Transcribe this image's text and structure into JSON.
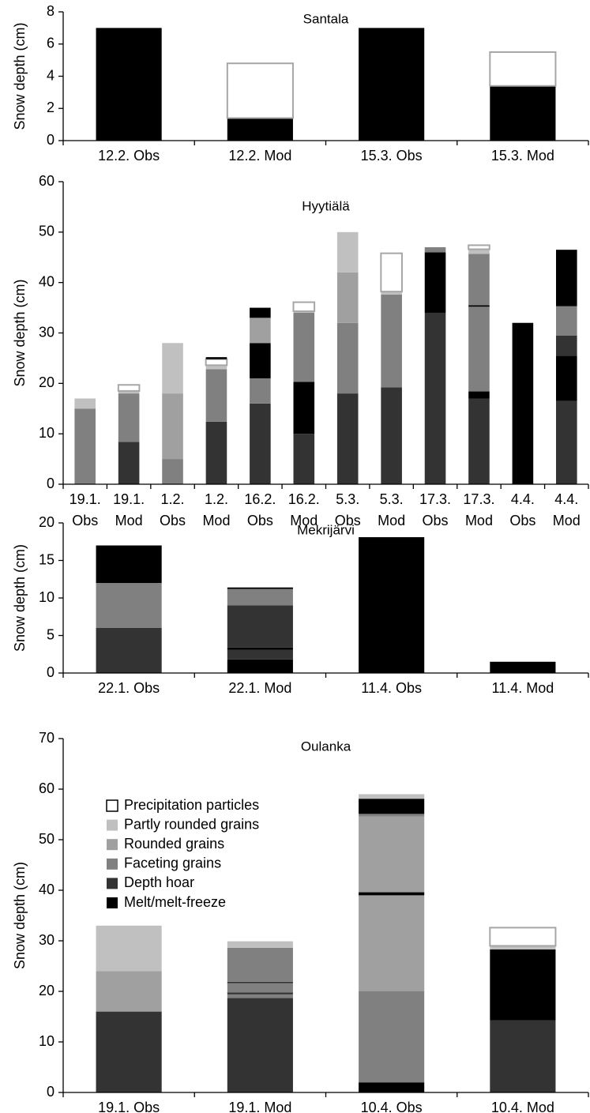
{
  "legend": {
    "position": "upper left",
    "series": [
      {
        "name": "Precipitation particles",
        "color": "#ffffff",
        "edgecolor": "#a6a6a6"
      },
      {
        "name": "Partly rounded grains",
        "color": "#c0c0c0"
      },
      {
        "name": "Rounded grains",
        "color": "#a0a0a0"
      },
      {
        "name": "Faceting grains",
        "color": "#808080"
      },
      {
        "name": "Depth hoar",
        "color": "#333333"
      },
      {
        "name": "Melt/melt-freeze",
        "color": "#000000"
      }
    ]
  },
  "chart_data": [
    {
      "type": "stacked-bar",
      "title": "Santala",
      "y_label": "Snow depth (cm)",
      "categories": [
        "12.2. Obs",
        "12.2. Mod",
        "15.3. Obs",
        "15.3. Mod"
      ],
      "ylim": [
        0,
        8
      ],
      "yticks": [
        0,
        2,
        4,
        6,
        8
      ],
      "stacks": [
        [
          {
            "series": 5,
            "value": 7
          }
        ],
        [
          {
            "series": 5,
            "value": 1.4
          },
          {
            "series": 0,
            "value": 3.4
          }
        ],
        [
          {
            "series": 5,
            "value": 7
          }
        ],
        [
          {
            "series": 5,
            "value": 3.4
          },
          {
            "series": 0,
            "value": 2.1
          }
        ]
      ]
    },
    {
      "type": "stacked-bar",
      "title": "Hyytiälä",
      "y_label": "Snow depth (cm)",
      "categories": [
        [
          "19.1.",
          "Obs"
        ],
        [
          "19.1.",
          "Mod"
        ],
        [
          "1.2.",
          "Obs"
        ],
        [
          "1.2.",
          "Mod"
        ],
        [
          "16.2.",
          "Obs"
        ],
        [
          "16.2.",
          "Mod"
        ],
        [
          "5.3.",
          "Obs"
        ],
        [
          "5.3.",
          "Mod"
        ],
        [
          "17.3.",
          "Obs"
        ],
        [
          "17.3.",
          "Mod"
        ],
        [
          "4.4.",
          "Obs"
        ],
        [
          "4.4.",
          "Mod"
        ]
      ],
      "ylim": [
        0,
        60
      ],
      "yticks": [
        0,
        10,
        20,
        30,
        40,
        50,
        60
      ],
      "stacks": [
        [
          {
            "series": 3,
            "value": 15
          },
          {
            "series": 1,
            "value": 2
          }
        ],
        [
          {
            "series": 4,
            "value": 8.4
          },
          {
            "series": 3,
            "value": 9.6
          },
          {
            "series": 1,
            "value": 0.5
          },
          {
            "series": 0,
            "value": 1.2
          }
        ],
        [
          {
            "series": 3,
            "value": 5
          },
          {
            "series": 2,
            "value": 13
          },
          {
            "series": 1,
            "value": 10
          }
        ],
        [
          {
            "series": 4,
            "value": 12.4
          },
          {
            "series": 3,
            "value": 10.4
          },
          {
            "series": 1,
            "value": 0.8
          },
          {
            "series": 0,
            "value": 1.2
          },
          {
            "series": 5,
            "value": 0.4
          }
        ],
        [
          {
            "series": 4,
            "value": 16
          },
          {
            "series": 3,
            "value": 5
          },
          {
            "series": 5,
            "value": 7
          },
          {
            "series": 2,
            "value": 5
          },
          {
            "series": 5,
            "value": 2
          }
        ],
        [
          {
            "series": 4,
            "value": 10
          },
          {
            "series": 5,
            "value": 10.3
          },
          {
            "series": 3,
            "value": 13.7
          },
          {
            "series": 1,
            "value": 0.3
          },
          {
            "series": 0,
            "value": 1.8
          }
        ],
        [
          {
            "series": 4,
            "value": 18
          },
          {
            "series": 3,
            "value": 14
          },
          {
            "series": 2,
            "value": 10
          },
          {
            "series": 1,
            "value": 8
          }
        ],
        [
          {
            "series": 4,
            "value": 19.2
          },
          {
            "series": 3,
            "value": 18.4
          },
          {
            "series": 1,
            "value": 0.6
          },
          {
            "series": 0,
            "value": 7.6
          }
        ],
        [
          {
            "series": 4,
            "value": 34
          },
          {
            "series": 5,
            "value": 12
          },
          {
            "series": 3,
            "value": 1
          }
        ],
        [
          {
            "series": 4,
            "value": 17
          },
          {
            "series": 5,
            "value": 1.4
          },
          {
            "series": 3,
            "value": 16.8
          },
          {
            "series": 5,
            "value": 0.3
          },
          {
            "series": 3,
            "value": 10.2
          },
          {
            "series": 1,
            "value": 0.9
          },
          {
            "series": 0,
            "value": 0.8
          }
        ],
        [
          {
            "series": 5,
            "value": 32
          }
        ],
        [
          {
            "series": 4,
            "value": 16.5
          },
          {
            "series": 5,
            "value": 9
          },
          {
            "series": 4,
            "value": 4
          },
          {
            "series": 3,
            "value": 5.8
          },
          {
            "series": 5,
            "value": 11.2
          }
        ]
      ]
    },
    {
      "type": "stacked-bar",
      "title": "Mekrijärvi",
      "y_label": "Snow depth (cm)",
      "categories": [
        "22.1. Obs",
        "22.1. Mod",
        "11.4. Obs",
        "11.4. Mod"
      ],
      "ylim": [
        0,
        20
      ],
      "yticks": [
        0,
        5,
        10,
        15,
        20
      ],
      "stacks": [
        [
          {
            "series": 4,
            "value": 6
          },
          {
            "series": 3,
            "value": 6
          },
          {
            "series": 5,
            "value": 5
          }
        ],
        [
          {
            "series": 5,
            "value": 1.8
          },
          {
            "series": 4,
            "value": 1.3
          },
          {
            "series": 5,
            "value": 0.3
          },
          {
            "series": 4,
            "value": 5.6
          },
          {
            "series": 3,
            "value": 2.2
          },
          {
            "series": 5,
            "value": 0.2
          }
        ],
        [
          {
            "series": 5,
            "value": 18.1
          }
        ],
        [
          {
            "series": 5,
            "value": 1.5
          }
        ]
      ]
    },
    {
      "type": "stacked-bar",
      "title": "Oulanka",
      "y_label": "Snow depth (cm)",
      "show_legend": true,
      "categories": [
        "19.1. Obs",
        "19.1. Mod",
        "10.4. Obs",
        "10.4. Mod"
      ],
      "ylim": [
        0,
        70
      ],
      "yticks": [
        0,
        10,
        20,
        30,
        40,
        50,
        60,
        70
      ],
      "stacks": [
        [
          {
            "series": 4,
            "value": 16
          },
          {
            "series": 2,
            "value": 8
          },
          {
            "series": 1,
            "value": 9
          }
        ],
        [
          {
            "series": 4,
            "value": 18.7
          },
          {
            "series": 3,
            "value": 0.7
          },
          {
            "series": 4,
            "value": 0.4
          },
          {
            "series": 3,
            "value": 1.8
          },
          {
            "series": 4,
            "value": 0.3
          },
          {
            "series": 3,
            "value": 6.7
          },
          {
            "series": 1,
            "value": 1.3
          }
        ],
        [
          {
            "series": 5,
            "value": 2
          },
          {
            "series": 3,
            "value": 18
          },
          {
            "series": 2,
            "value": 19
          },
          {
            "series": 5,
            "value": 0.6
          },
          {
            "series": 2,
            "value": 15
          },
          {
            "series": 3,
            "value": 0.5
          },
          {
            "series": 5,
            "value": 3
          },
          {
            "series": 1,
            "value": 0.9
          }
        ],
        [
          {
            "series": 4,
            "value": 14.3
          },
          {
            "series": 5,
            "value": 14
          },
          {
            "series": 1,
            "value": 0.7
          },
          {
            "series": 0,
            "value": 3.6
          }
        ]
      ]
    }
  ]
}
